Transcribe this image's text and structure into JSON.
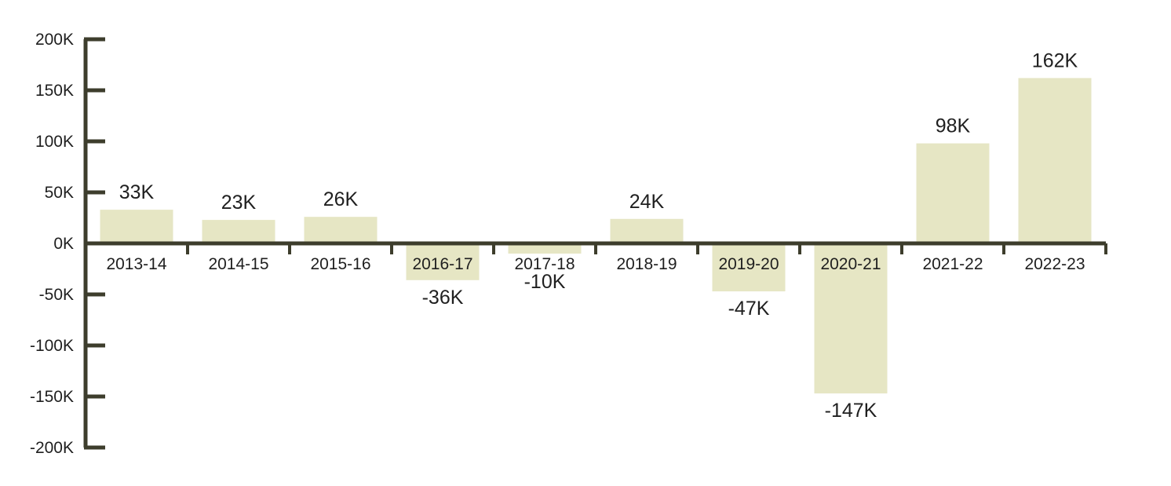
{
  "chart_data": {
    "type": "bar",
    "categories": [
      "2013-14",
      "2014-15",
      "2015-16",
      "2016-17",
      "2017-18",
      "2018-19",
      "2019-20",
      "2020-21",
      "2021-22",
      "2022-23"
    ],
    "values": [
      33,
      23,
      26,
      -36,
      -10,
      24,
      -47,
      -147,
      98,
      162
    ],
    "data_labels": [
      "33K",
      "23K",
      "26K",
      "-36K",
      "-10K",
      "24K",
      "-47K",
      "-147K",
      "98K",
      "162K"
    ],
    "title": "",
    "xlabel": "",
    "ylabel": "",
    "ylim": [
      -200,
      200
    ],
    "yticks": [
      200,
      150,
      100,
      50,
      0,
      -50,
      -100,
      -150,
      -200
    ],
    "ytick_labels": [
      "200K",
      "150K",
      "100K",
      "50K",
      "0K",
      "-50K",
      "-100K",
      "-150K",
      "-200K"
    ],
    "grid": false,
    "legend": "none",
    "colors": {
      "bar": "#e6e6c4",
      "axis": "#3d3d2c",
      "text": "#1f1f1f"
    }
  }
}
